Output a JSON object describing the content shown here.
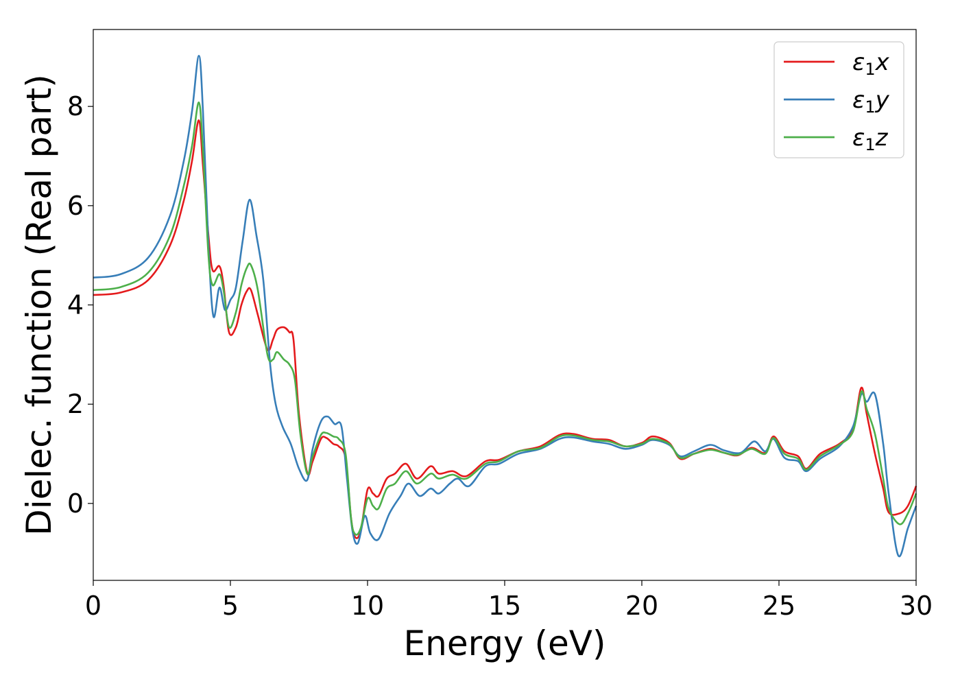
{
  "chart_data": {
    "type": "line",
    "title": "",
    "xlabel": "Energy (eV)",
    "ylabel": "Dielec. function (Real part)",
    "xlim": [
      0,
      30
    ],
    "ylim": [
      -1.55,
      9.55
    ],
    "xticks": [
      0,
      5,
      10,
      15,
      20,
      25,
      30
    ],
    "yticks": [
      0,
      2,
      4,
      6,
      8
    ],
    "grid": false,
    "legend_position": "top-right",
    "series": [
      {
        "name": "ε₁x",
        "legend": {
          "base": "ε",
          "sub": "1",
          "axis": "x"
        },
        "color": "#e41a1c",
        "points": [
          [
            0,
            4.2
          ],
          [
            1,
            4.25
          ],
          [
            2,
            4.5
          ],
          [
            2.8,
            5.2
          ],
          [
            3.3,
            6.1
          ],
          [
            3.6,
            6.9
          ],
          [
            3.85,
            7.72
          ],
          [
            4.0,
            6.8
          ],
          [
            4.2,
            5.4
          ],
          [
            4.35,
            4.7
          ],
          [
            4.6,
            4.78
          ],
          [
            4.75,
            4.4
          ],
          [
            4.95,
            3.45
          ],
          [
            5.2,
            3.55
          ],
          [
            5.4,
            4.0
          ],
          [
            5.6,
            4.28
          ],
          [
            5.75,
            4.3
          ],
          [
            6.0,
            3.8
          ],
          [
            6.35,
            3.1
          ],
          [
            6.55,
            3.3
          ],
          [
            6.7,
            3.5
          ],
          [
            6.95,
            3.55
          ],
          [
            7.15,
            3.45
          ],
          [
            7.3,
            3.3
          ],
          [
            7.5,
            1.8
          ],
          [
            7.8,
            0.62
          ],
          [
            8.0,
            0.85
          ],
          [
            8.3,
            1.3
          ],
          [
            8.5,
            1.32
          ],
          [
            8.75,
            1.2
          ],
          [
            8.95,
            1.15
          ],
          [
            9.2,
            0.9
          ],
          [
            9.4,
            -0.3
          ],
          [
            9.55,
            -0.68
          ],
          [
            9.75,
            -0.55
          ],
          [
            10.0,
            0.28
          ],
          [
            10.2,
            0.2
          ],
          [
            10.4,
            0.15
          ],
          [
            10.7,
            0.5
          ],
          [
            11.0,
            0.6
          ],
          [
            11.4,
            0.8
          ],
          [
            11.8,
            0.5
          ],
          [
            12.3,
            0.75
          ],
          [
            12.6,
            0.6
          ],
          [
            13.1,
            0.65
          ],
          [
            13.6,
            0.55
          ],
          [
            14.3,
            0.85
          ],
          [
            14.8,
            0.88
          ],
          [
            15.5,
            1.05
          ],
          [
            16.3,
            1.15
          ],
          [
            17.0,
            1.38
          ],
          [
            17.5,
            1.4
          ],
          [
            18.2,
            1.3
          ],
          [
            18.8,
            1.28
          ],
          [
            19.4,
            1.15
          ],
          [
            20.0,
            1.22
          ],
          [
            20.4,
            1.35
          ],
          [
            21.0,
            1.22
          ],
          [
            21.4,
            0.9
          ],
          [
            21.9,
            1.0
          ],
          [
            22.5,
            1.1
          ],
          [
            23.0,
            1.02
          ],
          [
            23.5,
            0.97
          ],
          [
            24.0,
            1.12
          ],
          [
            24.5,
            1.02
          ],
          [
            24.8,
            1.35
          ],
          [
            25.2,
            1.05
          ],
          [
            25.7,
            0.95
          ],
          [
            26.0,
            0.7
          ],
          [
            26.5,
            1.0
          ],
          [
            27.2,
            1.2
          ],
          [
            27.7,
            1.5
          ],
          [
            28.0,
            2.33
          ],
          [
            28.2,
            1.8
          ],
          [
            28.5,
            1.0
          ],
          [
            28.8,
            0.3
          ],
          [
            29.0,
            -0.18
          ],
          [
            29.4,
            -0.2
          ],
          [
            29.7,
            -0.05
          ],
          [
            30,
            0.35
          ]
        ]
      },
      {
        "name": "ε₁y",
        "legend": {
          "base": "ε",
          "sub": "1",
          "axis": "y"
        },
        "color": "#377eb8",
        "points": [
          [
            0,
            4.55
          ],
          [
            1,
            4.62
          ],
          [
            2,
            4.95
          ],
          [
            2.8,
            5.8
          ],
          [
            3.3,
            6.9
          ],
          [
            3.6,
            7.9
          ],
          [
            3.85,
            9.02
          ],
          [
            4.0,
            7.9
          ],
          [
            4.2,
            5.2
          ],
          [
            4.38,
            3.77
          ],
          [
            4.6,
            4.35
          ],
          [
            4.8,
            3.9
          ],
          [
            5.0,
            4.1
          ],
          [
            5.2,
            4.35
          ],
          [
            5.45,
            5.3
          ],
          [
            5.7,
            6.12
          ],
          [
            5.95,
            5.4
          ],
          [
            6.2,
            4.5
          ],
          [
            6.45,
            2.8
          ],
          [
            6.65,
            2.0
          ],
          [
            6.9,
            1.55
          ],
          [
            7.2,
            1.2
          ],
          [
            7.5,
            0.7
          ],
          [
            7.8,
            0.47
          ],
          [
            8.0,
            1.1
          ],
          [
            8.3,
            1.65
          ],
          [
            8.55,
            1.75
          ],
          [
            8.8,
            1.6
          ],
          [
            9.05,
            1.55
          ],
          [
            9.25,
            0.5
          ],
          [
            9.45,
            -0.55
          ],
          [
            9.65,
            -0.8
          ],
          [
            9.9,
            -0.25
          ],
          [
            10.1,
            -0.6
          ],
          [
            10.4,
            -0.72
          ],
          [
            10.8,
            -0.2
          ],
          [
            11.2,
            0.15
          ],
          [
            11.5,
            0.4
          ],
          [
            11.9,
            0.15
          ],
          [
            12.3,
            0.3
          ],
          [
            12.6,
            0.2
          ],
          [
            13.0,
            0.4
          ],
          [
            13.3,
            0.5
          ],
          [
            13.7,
            0.35
          ],
          [
            14.3,
            0.75
          ],
          [
            14.8,
            0.8
          ],
          [
            15.5,
            1.0
          ],
          [
            16.3,
            1.1
          ],
          [
            17.0,
            1.3
          ],
          [
            17.5,
            1.33
          ],
          [
            18.2,
            1.25
          ],
          [
            18.8,
            1.2
          ],
          [
            19.4,
            1.1
          ],
          [
            20.0,
            1.18
          ],
          [
            20.4,
            1.28
          ],
          [
            21.0,
            1.18
          ],
          [
            21.4,
            0.95
          ],
          [
            21.9,
            1.05
          ],
          [
            22.5,
            1.18
          ],
          [
            23.0,
            1.07
          ],
          [
            23.6,
            1.02
          ],
          [
            24.1,
            1.25
          ],
          [
            24.5,
            1.05
          ],
          [
            24.8,
            1.3
          ],
          [
            25.2,
            0.92
          ],
          [
            25.7,
            0.85
          ],
          [
            26.0,
            0.65
          ],
          [
            26.5,
            0.9
          ],
          [
            27.2,
            1.15
          ],
          [
            27.7,
            1.55
          ],
          [
            28.0,
            2.2
          ],
          [
            28.2,
            2.05
          ],
          [
            28.5,
            2.2
          ],
          [
            28.8,
            1.2
          ],
          [
            29.0,
            0.2
          ],
          [
            29.35,
            -1.05
          ],
          [
            29.7,
            -0.5
          ],
          [
            30,
            -0.05
          ]
        ]
      },
      {
        "name": "ε₁z",
        "legend": {
          "base": "ε",
          "sub": "1",
          "axis": "z"
        },
        "color": "#4daf4a",
        "points": [
          [
            0,
            4.3
          ],
          [
            1,
            4.36
          ],
          [
            2,
            4.65
          ],
          [
            2.8,
            5.4
          ],
          [
            3.3,
            6.4
          ],
          [
            3.6,
            7.2
          ],
          [
            3.85,
            8.08
          ],
          [
            4.0,
            7.1
          ],
          [
            4.2,
            5.0
          ],
          [
            4.35,
            4.4
          ],
          [
            4.6,
            4.62
          ],
          [
            4.75,
            4.3
          ],
          [
            4.95,
            3.55
          ],
          [
            5.2,
            3.85
          ],
          [
            5.4,
            4.4
          ],
          [
            5.6,
            4.75
          ],
          [
            5.75,
            4.8
          ],
          [
            6.0,
            4.3
          ],
          [
            6.35,
            3.0
          ],
          [
            6.55,
            2.9
          ],
          [
            6.7,
            3.05
          ],
          [
            6.95,
            2.9
          ],
          [
            7.15,
            2.8
          ],
          [
            7.35,
            2.5
          ],
          [
            7.55,
            1.4
          ],
          [
            7.8,
            0.6
          ],
          [
            8.0,
            0.95
          ],
          [
            8.3,
            1.38
          ],
          [
            8.5,
            1.42
          ],
          [
            8.75,
            1.35
          ],
          [
            8.95,
            1.3
          ],
          [
            9.2,
            1.0
          ],
          [
            9.4,
            -0.3
          ],
          [
            9.55,
            -0.62
          ],
          [
            9.75,
            -0.5
          ],
          [
            10.0,
            0.1
          ],
          [
            10.2,
            -0.05
          ],
          [
            10.4,
            -0.1
          ],
          [
            10.7,
            0.3
          ],
          [
            11.0,
            0.4
          ],
          [
            11.4,
            0.65
          ],
          [
            11.8,
            0.4
          ],
          [
            12.3,
            0.6
          ],
          [
            12.6,
            0.5
          ],
          [
            13.1,
            0.58
          ],
          [
            13.6,
            0.5
          ],
          [
            14.3,
            0.8
          ],
          [
            14.8,
            0.85
          ],
          [
            15.5,
            1.05
          ],
          [
            16.3,
            1.12
          ],
          [
            17.0,
            1.35
          ],
          [
            17.5,
            1.37
          ],
          [
            18.2,
            1.28
          ],
          [
            18.8,
            1.25
          ],
          [
            19.4,
            1.15
          ],
          [
            20.0,
            1.2
          ],
          [
            20.4,
            1.3
          ],
          [
            21.0,
            1.2
          ],
          [
            21.4,
            0.92
          ],
          [
            21.9,
            1.0
          ],
          [
            22.5,
            1.08
          ],
          [
            23.0,
            1.02
          ],
          [
            23.5,
            0.98
          ],
          [
            24.0,
            1.1
          ],
          [
            24.5,
            1.0
          ],
          [
            24.8,
            1.32
          ],
          [
            25.2,
            1.0
          ],
          [
            25.7,
            0.9
          ],
          [
            26.0,
            0.68
          ],
          [
            26.5,
            0.95
          ],
          [
            27.2,
            1.18
          ],
          [
            27.7,
            1.45
          ],
          [
            28.0,
            2.25
          ],
          [
            28.2,
            1.9
          ],
          [
            28.5,
            1.4
          ],
          [
            28.8,
            0.5
          ],
          [
            29.0,
            -0.1
          ],
          [
            29.4,
            -0.42
          ],
          [
            29.7,
            -0.2
          ],
          [
            30,
            0.2
          ]
        ]
      }
    ]
  }
}
